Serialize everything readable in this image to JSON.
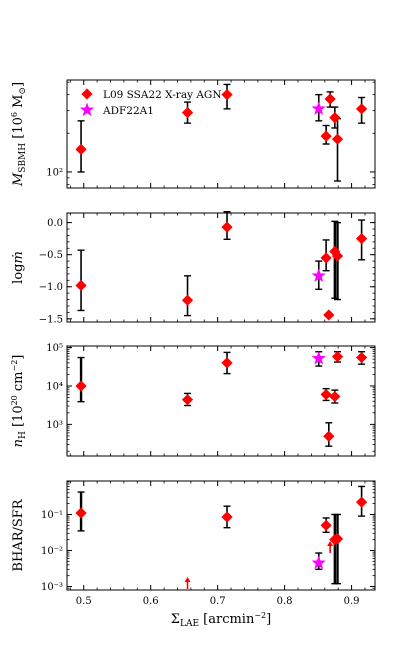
{
  "chart_data": [
    {
      "type": "scatter",
      "ylabel": "M_SBMH [10^6 M_⊙]",
      "yscale": "log",
      "ylim": [
        75,
        520
      ],
      "yticks": [
        {
          "value": 100,
          "label": "10²"
        }
      ],
      "legend_position": "top-left",
      "series": [
        {
          "name": "L09 SSA22 X-ray AGN",
          "marker": "diamond",
          "color": "#ff0000",
          "points": [
            {
              "x": 0.496,
              "y": 150,
              "ylo": 100,
              "yhi": 250
            },
            {
              "x": 0.655,
              "y": 290,
              "ylo": 240,
              "yhi": 350
            },
            {
              "x": 0.714,
              "y": 400,
              "ylo": 310,
              "yhi": 480
            },
            {
              "x": 0.862,
              "y": 190,
              "ylo": 165,
              "yhi": 230
            },
            {
              "x": 0.868,
              "y": 370,
              "ylo": 320,
              "yhi": 420
            },
            {
              "x": 0.875,
              "y": 265,
              "ylo": 220,
              "yhi": 320
            },
            {
              "x": 0.879,
              "y": 180,
              "ylo": 85,
              "yhi": 260
            },
            {
              "x": 0.915,
              "y": 310,
              "ylo": 240,
              "yhi": 380
            }
          ]
        },
        {
          "name": "ADF22A1",
          "marker": "star",
          "color": "#ff00ff",
          "points": [
            {
              "x": 0.851,
              "y": 310,
              "ylo": 250,
              "yhi": 400
            }
          ]
        }
      ]
    },
    {
      "type": "scatter",
      "ylabel": "log ṁ",
      "ylim": [
        -1.55,
        0.15
      ],
      "yticks": [
        {
          "value": 0,
          "label": "0.0"
        },
        {
          "value": -0.5,
          "label": "−0.5"
        },
        {
          "value": -1,
          "label": "−1.0"
        },
        {
          "value": -1.5,
          "label": "−1.5"
        }
      ],
      "series": [
        {
          "name": "L09 SSA22 X-ray AGN",
          "marker": "diamond",
          "color": "#ff0000",
          "points": [
            {
              "x": 0.496,
              "y": -0.98,
              "ylo": -1.37,
              "yhi": -0.43
            },
            {
              "x": 0.655,
              "y": -1.21,
              "ylo": -1.45,
              "yhi": -0.83
            },
            {
              "x": 0.714,
              "y": -0.07,
              "ylo": -0.26,
              "yhi": 0.17
            },
            {
              "x": 0.862,
              "y": -0.55,
              "ylo": -0.75,
              "yhi": -0.27
            },
            {
              "x": 0.866,
              "y": -1.44,
              "ylo": null,
              "yhi": null
            },
            {
              "x": 0.875,
              "y": -0.45,
              "ylo": -1.18,
              "yhi": 0.02
            },
            {
              "x": 0.879,
              "y": -0.52,
              "ylo": -1.2,
              "yhi": 0.0
            },
            {
              "x": 0.915,
              "y": -0.25,
              "ylo": -0.58,
              "yhi": 0.04
            }
          ]
        },
        {
          "name": "ADF22A1",
          "marker": "star",
          "color": "#ff00ff",
          "points": [
            {
              "x": 0.851,
              "y": -0.83,
              "ylo": -1.04,
              "yhi": -0.6
            }
          ]
        }
      ]
    },
    {
      "type": "scatter",
      "ylabel": "n_H [10^20 cm^−2]",
      "yscale": "log",
      "ylim": [
        150,
        110000
      ],
      "yticks": [
        {
          "value": 1000,
          "label": "10³"
        },
        {
          "value": 10000,
          "label": "10⁴"
        },
        {
          "value": 100000,
          "label": "10⁵"
        }
      ],
      "series": [
        {
          "name": "L09 SSA22 X-ray AGN",
          "marker": "diamond",
          "color": "#ff0000",
          "points": [
            {
              "x": 0.496,
              "y": 10000,
              "ylo": 3900,
              "yhi": 55000
            },
            {
              "x": 0.655,
              "y": 4400,
              "ylo": 3100,
              "yhi": 6400
            },
            {
              "x": 0.714,
              "y": 40000,
              "ylo": 21000,
              "yhi": 75000
            },
            {
              "x": 0.862,
              "y": 6000,
              "ylo": 4200,
              "yhi": 8500
            },
            {
              "x": 0.866,
              "y": 490,
              "ylo": 270,
              "yhi": 1100
            },
            {
              "x": 0.875,
              "y": 5300,
              "ylo": 3600,
              "yhi": 7800
            },
            {
              "x": 0.879,
              "y": 58000,
              "ylo": 42000,
              "yhi": 78000
            },
            {
              "x": 0.915,
              "y": 55000,
              "ylo": 37000,
              "yhi": 78000
            }
          ]
        },
        {
          "name": "ADF22A1",
          "marker": "star",
          "color": "#ff00ff",
          "points": [
            {
              "x": 0.851,
              "y": 52000,
              "ylo": 33000,
              "yhi": 78000
            }
          ]
        }
      ]
    },
    {
      "type": "scatter",
      "ylabel": "BHAR/SFR",
      "yscale": "log",
      "ylim": [
        0.0008,
        0.85
      ],
      "yticks": [
        {
          "value": 0.001,
          "label": "10⁻³"
        },
        {
          "value": 0.01,
          "label": "10⁻²"
        },
        {
          "value": 0.1,
          "label": "10⁻¹"
        }
      ],
      "xlabel": "Σ_LAE [arcmin^−2]",
      "xlim": [
        0.475,
        0.935
      ],
      "xticks": [
        {
          "value": 0.5,
          "label": "0.5"
        },
        {
          "value": 0.6,
          "label": "0.6"
        },
        {
          "value": 0.7,
          "label": "0.7"
        },
        {
          "value": 0.8,
          "label": "0.8"
        },
        {
          "value": 0.9,
          "label": "0.9"
        }
      ],
      "series": [
        {
          "name": "L09 SSA22 X-ray AGN",
          "marker": "diamond",
          "color": "#ff0000",
          "points": [
            {
              "x": 0.496,
              "y": 0.11,
              "ylo": 0.035,
              "yhi": 0.42
            },
            {
              "x": 0.714,
              "y": 0.085,
              "ylo": 0.043,
              "yhi": 0.17
            },
            {
              "x": 0.862,
              "y": 0.05,
              "ylo": 0.032,
              "yhi": 0.08
            },
            {
              "x": 0.875,
              "y": 0.02,
              "ylo": 0.0012,
              "yhi": 0.1
            },
            {
              "x": 0.879,
              "y": 0.021,
              "ylo": 0.0012,
              "yhi": 0.1
            },
            {
              "x": 0.915,
              "y": 0.22,
              "ylo": 0.09,
              "yhi": 0.6
            }
          ]
        },
        {
          "name": "ADF22A1",
          "marker": "star",
          "color": "#ff00ff",
          "points": [
            {
              "x": 0.851,
              "y": 0.0045,
              "ylo": 0.003,
              "yhi": 0.0085
            }
          ]
        }
      ],
      "lower_limits": [
        {
          "x": 0.655,
          "y": 0.0008,
          "color": "#ff0000"
        },
        {
          "x": 0.868,
          "y": 0.0085,
          "color": "#ff0000"
        }
      ]
    }
  ]
}
